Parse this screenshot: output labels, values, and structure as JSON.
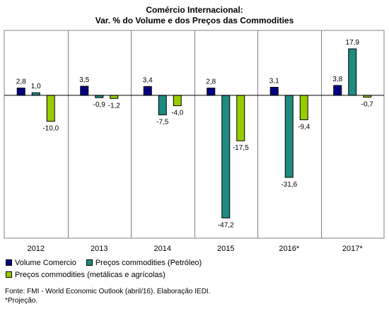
{
  "chart_data": {
    "type": "bar",
    "title": "Comércio Internacional:",
    "subtitle": "Var. % do Volume e dos Preços das Commodities",
    "categories": [
      "2012",
      "2013",
      "2014",
      "2015",
      "2016*",
      "2017*"
    ],
    "series": [
      {
        "name": "Volume Comercio",
        "color": "#000080",
        "values": [
          2.8,
          3.5,
          3.4,
          2.8,
          3.1,
          3.8
        ],
        "labels": [
          "2,8",
          "3,5",
          "3,4",
          "2,8",
          "3,1",
          "3,8"
        ]
      },
      {
        "name": "Preços commodities (Petróleo)",
        "color": "#1f8a80",
        "values": [
          1.0,
          -0.9,
          -7.5,
          -47.2,
          -31.6,
          17.9
        ],
        "labels": [
          "1,0",
          "-0,9",
          "-7,5",
          "-47,2",
          "-31,6",
          "17,9"
        ]
      },
      {
        "name": "Preços commodities (metálicas e agrícolas)",
        "color": "#99cc00",
        "values": [
          -10.0,
          -1.2,
          -4.0,
          -17.5,
          -9.4,
          -0.7
        ],
        "labels": [
          "-10,0",
          "-1,2",
          "-4,0",
          "-17,5",
          "-9,4",
          "-0,7"
        ]
      }
    ],
    "ylim": [
      -55,
      25
    ],
    "grid": false,
    "legend_position": "bottom"
  },
  "footer": {
    "source": "Fonte: FMI - World Economic Outlook (abril/16). Elaboração IEDI.",
    "note": "*Projeção."
  }
}
